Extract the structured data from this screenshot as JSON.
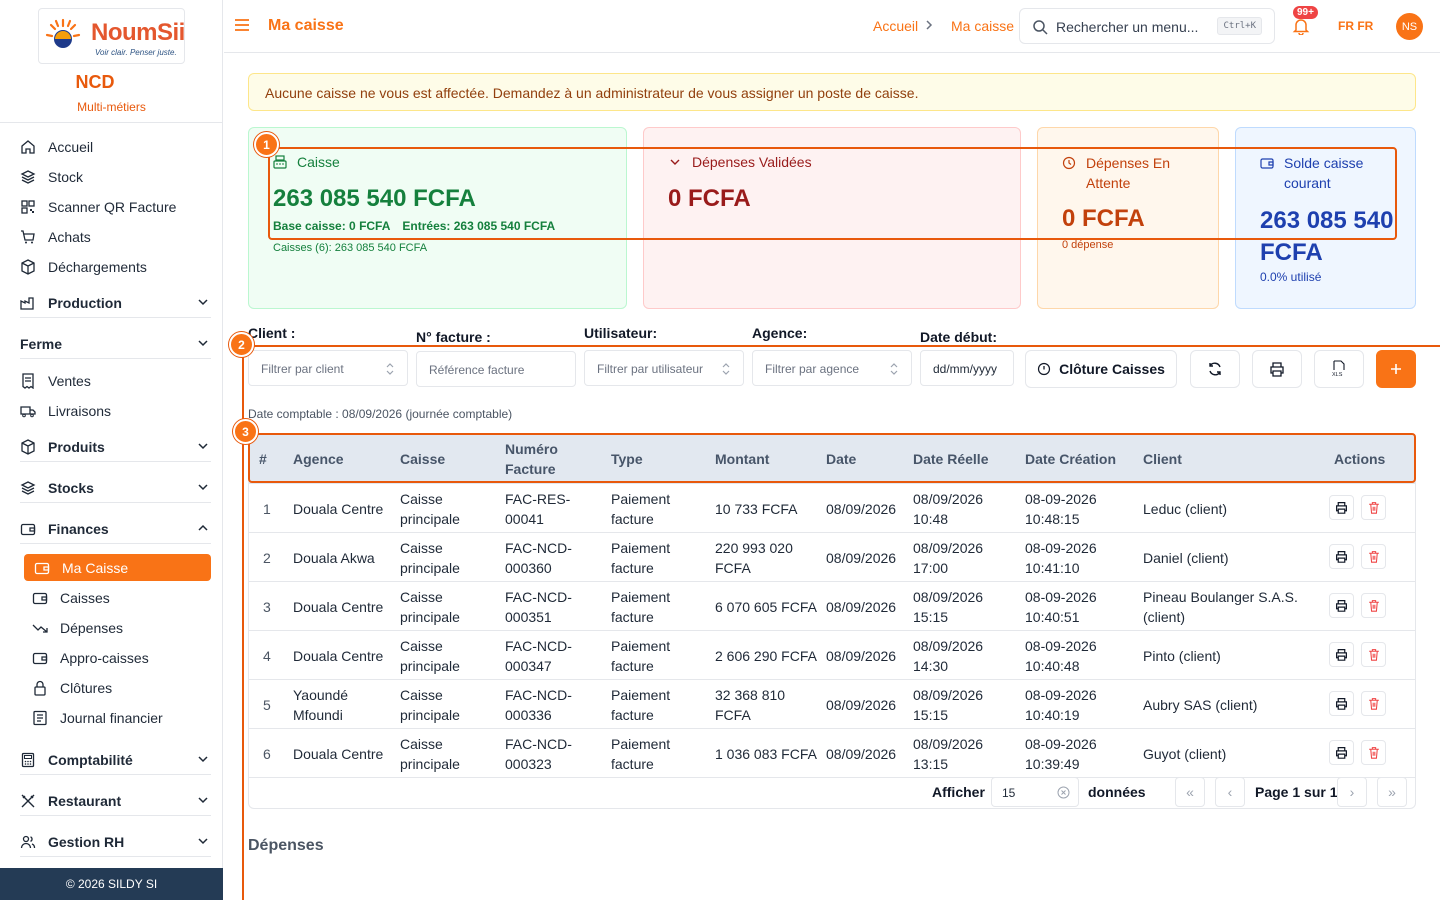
{
  "sidebar": {
    "logo_text": "NoumSii",
    "logo_tagline": "Voir clair. Penser juste.",
    "org_name": "NCD",
    "org_subtitle": "Multi-métiers",
    "items": [
      {
        "label": "Accueil",
        "icon": "home-icon"
      },
      {
        "label": "Stock",
        "icon": "layers-icon"
      },
      {
        "label": "Scanner QR Facture",
        "icon": "qr-icon"
      },
      {
        "label": "Achats",
        "icon": "cart-icon"
      },
      {
        "label": "Déchargements",
        "icon": "box-icon"
      }
    ],
    "groups": {
      "production": "Production",
      "ferme": "Ferme",
      "ventes": "Ventes",
      "livraisons": "Livraisons",
      "produits": "Produits",
      "stocks": "Stocks",
      "finances": "Finances",
      "comptabilite": "Comptabilité",
      "restaurant": "Restaurant",
      "gestion_rh": "Gestion RH"
    },
    "finance_items": [
      {
        "label": "Ma Caisse",
        "active": true
      },
      {
        "label": "Caisses"
      },
      {
        "label": "Dépenses"
      },
      {
        "label": "Appro-caisses"
      },
      {
        "label": "Clôtures"
      },
      {
        "label": "Journal financier"
      }
    ],
    "footer": "© 2026 SILDY SI"
  },
  "topbar": {
    "title": "Ma caisse",
    "breadcrumb": [
      "Accueil",
      "Ma caisse"
    ],
    "search_placeholder": "Rechercher un menu...",
    "search_shortcut": "Ctrl+K",
    "notif_count": "99+",
    "lang": "FR",
    "lang_code": "FR",
    "avatar_initials": "NS"
  },
  "alert": "Aucune caisse ne vous est affectée. Demandez à un administrateur de vous assigner un poste de caisse.",
  "cards": {
    "caisse": {
      "label": "Caisse",
      "amount": "263 085 540 FCFA",
      "base": "Base caisse: 0 FCFA",
      "entrees": "Entrées: 263 085 540 FCFA",
      "caisses": "Caisses (6): 263 085 540 FCFA"
    },
    "depenses_validees": {
      "label": "Dépenses Validées",
      "amount": "0 FCFA"
    },
    "depenses_attente": {
      "label_line1": "Dépenses En",
      "label_line2": "Attente",
      "amount": "0 FCFA",
      "sub": "0 dépense"
    },
    "solde": {
      "label_line1": "Solde caisse",
      "label_line2": "courant",
      "amount_line1": "263 085 540",
      "amount_line2": "FCFA",
      "sub": "0.0% utilisé"
    }
  },
  "annotations": [
    "1",
    "2",
    "3"
  ],
  "filters": {
    "client_label": "Client :",
    "client_placeholder": "Filtrer par client",
    "facture_label": "N° facture :",
    "facture_placeholder": "Référence facture",
    "user_label": "Utilisateur:",
    "user_placeholder": "Filtrer par utilisateur",
    "agence_label": "Agence:",
    "agence_placeholder": "Filtrer par agence",
    "date_label": "Date début:",
    "date_placeholder": "dd/mm/yyyy",
    "cloture_button": "Clôture Caisses"
  },
  "date_comptable": "Date comptable : 08/09/2026 (journée comptable)",
  "table": {
    "headers": [
      "#",
      "Agence",
      "Caisse",
      "Numéro Facture",
      "Type",
      "Montant",
      "Date",
      "Date Réelle",
      "Date Création",
      "Client",
      "Actions"
    ],
    "rows": [
      {
        "n": "1",
        "agence": "Douala Centre",
        "caisse": "Caisse principale",
        "facture": "FAC-RES-00041",
        "type": "Paiement facture",
        "montant": "10 733 FCFA",
        "date": "08/09/2026",
        "date_reelle": "08/09/2026 10:48",
        "date_creation": "08-09-2026 10:48:15",
        "client": "Leduc (client)"
      },
      {
        "n": "2",
        "agence": "Douala Akwa",
        "caisse": "Caisse principale",
        "facture": "FAC-NCD-000360",
        "type": "Paiement facture",
        "montant": "220 993 020 FCFA",
        "date": "08/09/2026",
        "date_reelle": "08/09/2026 17:00",
        "date_creation": "08-09-2026 10:41:10",
        "client": "Daniel (client)"
      },
      {
        "n": "3",
        "agence": "Douala Centre",
        "caisse": "Caisse principale",
        "facture": "FAC-NCD-000351",
        "type": "Paiement facture",
        "montant": "6 070 605 FCFA",
        "date": "08/09/2026",
        "date_reelle": "08/09/2026 15:15",
        "date_creation": "08-09-2026 10:40:51",
        "client": "Pineau Boulanger S.A.S. (client)"
      },
      {
        "n": "4",
        "agence": "Douala Centre",
        "caisse": "Caisse principale",
        "facture": "FAC-NCD-000347",
        "type": "Paiement facture",
        "montant": "2 606 290 FCFA",
        "date": "08/09/2026",
        "date_reelle": "08/09/2026 14:30",
        "date_creation": "08-09-2026 10:40:48",
        "client": "Pinto (client)"
      },
      {
        "n": "5",
        "agence": "Yaoundé Mfoundi",
        "caisse": "Caisse principale",
        "facture": "FAC-NCD-000336",
        "type": "Paiement facture",
        "montant": "32 368 810 FCFA",
        "date": "08/09/2026",
        "date_reelle": "08/09/2026 15:15",
        "date_creation": "08-09-2026 10:40:19",
        "client": "Aubry SAS (client)"
      },
      {
        "n": "6",
        "agence": "Douala Centre",
        "caisse": "Caisse principale",
        "facture": "FAC-NCD-000323",
        "type": "Paiement facture",
        "montant": "1 036 083 FCFA",
        "date": "08/09/2026",
        "date_reelle": "08/09/2026 13:15",
        "date_creation": "08-09-2026 10:39:49",
        "client": "Guyot (client)"
      }
    ]
  },
  "pagination": {
    "afficher": "Afficher",
    "page_size": "15",
    "donnees": "données",
    "page_info": "Page 1 sur 1"
  },
  "section_depenses": "Dépenses",
  "colors": {
    "accent": "#f97316",
    "annotation": "#e8590c",
    "green": "#15803d",
    "red": "#991b1b",
    "blue": "#1e40af"
  }
}
